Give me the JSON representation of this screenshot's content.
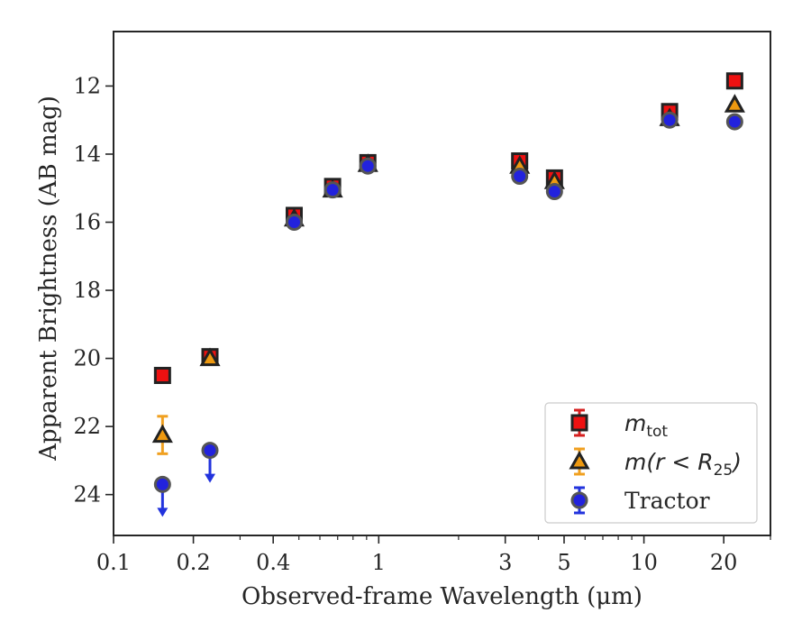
{
  "chart_data": {
    "type": "scatter",
    "xlabel": "Observed-frame Wavelength (μm)",
    "ylabel": "Apparent Brightness (AB mag)",
    "xscale": "log",
    "xlim": [
      0.1,
      30
    ],
    "ylim": [
      25.2,
      10.4
    ],
    "y_inverted": true,
    "xticks": [
      0.1,
      0.2,
      0.4,
      1,
      3,
      5,
      10,
      20
    ],
    "xtick_labels": [
      "0.1",
      "0.2",
      "0.4",
      "1",
      "3",
      "5",
      "10",
      "20"
    ],
    "yticks": [
      12,
      14,
      16,
      18,
      20,
      22,
      24
    ],
    "ytick_labels": [
      "12",
      "14",
      "16",
      "18",
      "20",
      "22",
      "24"
    ],
    "grid": false,
    "legend_position": "lower-right",
    "series": [
      {
        "name": "m_tot",
        "legend_main": "m",
        "legend_sub": "tot",
        "marker": "square",
        "face_color": "#ee1111",
        "edge_color": "#222222",
        "err_color": "#d62020",
        "points": [
          {
            "x": 0.153,
            "y": 20.5
          },
          {
            "x": 0.231,
            "y": 19.95
          },
          {
            "x": 0.48,
            "y": 15.8
          },
          {
            "x": 0.67,
            "y": 14.95
          },
          {
            "x": 0.91,
            "y": 14.25
          },
          {
            "x": 3.4,
            "y": 14.2
          },
          {
            "x": 4.6,
            "y": 14.7
          },
          {
            "x": 12.5,
            "y": 12.75
          },
          {
            "x": 22.0,
            "y": 11.85
          }
        ]
      },
      {
        "name": "m(r < R_25)",
        "legend_main": "m(r < R",
        "legend_sub": "25",
        "legend_tail": ")",
        "marker": "triangle",
        "face_color": "#ee9910",
        "edge_color": "#222222",
        "err_color": "#f0a020",
        "points": [
          {
            "x": 0.153,
            "y": 22.25,
            "yerr": 0.55
          },
          {
            "x": 0.231,
            "y": 20.0
          },
          {
            "x": 0.48,
            "y": 15.9
          },
          {
            "x": 0.67,
            "y": 15.05
          },
          {
            "x": 0.91,
            "y": 14.3
          },
          {
            "x": 3.4,
            "y": 14.35
          },
          {
            "x": 4.6,
            "y": 14.8
          },
          {
            "x": 12.5,
            "y": 12.95
          },
          {
            "x": 22.0,
            "y": 12.55
          }
        ]
      },
      {
        "name": "Tractor",
        "legend_main": "Tractor",
        "marker": "circle",
        "face_color": "#2222dd",
        "edge_color": "#555555",
        "err_color": "#2233dd",
        "points": [
          {
            "x": 0.153,
            "y": 23.7,
            "upper_limit": true
          },
          {
            "x": 0.231,
            "y": 22.7,
            "upper_limit": true
          },
          {
            "x": 0.48,
            "y": 16.0
          },
          {
            "x": 0.67,
            "y": 15.05
          },
          {
            "x": 0.91,
            "y": 14.35
          },
          {
            "x": 3.4,
            "y": 14.65
          },
          {
            "x": 4.6,
            "y": 15.1
          },
          {
            "x": 12.5,
            "y": 13.0
          },
          {
            "x": 22.0,
            "y": 13.05
          }
        ]
      }
    ]
  }
}
